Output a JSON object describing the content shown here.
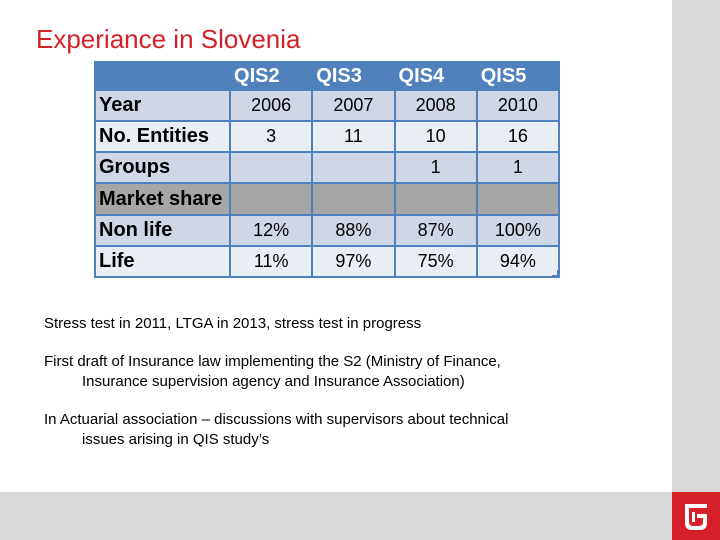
{
  "slide": {
    "title": "Experiance in Slovenia"
  },
  "table": {
    "headers": [
      "",
      "QIS2",
      "QIS3",
      "QIS4",
      "QIS5"
    ],
    "rows": [
      {
        "label": "Year",
        "cells": [
          "2006",
          "2007",
          "2008",
          "2010"
        ]
      },
      {
        "label": "No. Entities",
        "cells": [
          "3",
          "11",
          "10",
          "16"
        ]
      },
      {
        "label": "Groups",
        "cells": [
          "",
          "",
          "1",
          "1"
        ]
      },
      {
        "label": "Market share",
        "cells": [
          "",
          "",
          "",
          ""
        ]
      },
      {
        "label": "Non life",
        "cells": [
          "12%",
          "88%",
          "87%",
          "100%"
        ]
      },
      {
        "label": "Life",
        "cells": [
          "11%",
          "97%",
          "75%",
          "94%"
        ]
      }
    ]
  },
  "bullets": [
    {
      "line1": "Stress test in 2011, LTGA in 2013, stress test in progress",
      "line2": ""
    },
    {
      "line1": "First draft of Insurance law implementing the S2 (Ministry of Finance,",
      "line2": "Insurance supervision agency and Insurance Association)"
    },
    {
      "line1": "In Actuarial association – discussions with supervisors about technical",
      "line2": "issues arising in QIS study’s"
    }
  ],
  "colors": {
    "title": "#d42026",
    "header": "#4f81bd",
    "row_dark": "#cfd7e7",
    "row_light": "#e9edf4",
    "section": "#a6a6a6",
    "bars": "#d9d9d9"
  },
  "logo": {
    "icon": "company-logo-icon"
  }
}
